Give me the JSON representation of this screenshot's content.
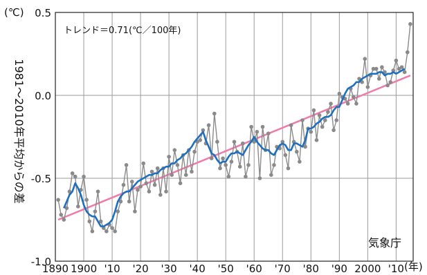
{
  "chart_data": {
    "type": "line",
    "y_unit": "(℃)",
    "x_unit": "(年)",
    "ylabel": "1981〜2010年平均からの差",
    "trend_label": "トレンド＝0.71(℃／100年)",
    "source": "気象庁",
    "ylim": [
      -1.0,
      0.5
    ],
    "xlim": [
      1890,
      2016
    ],
    "yticks": [
      0.5,
      0.0,
      -0.5,
      -1.0
    ],
    "ytick_labels": [
      "0.5",
      "0.0",
      "-0.5",
      "-1.0"
    ],
    "xticks": [
      1890,
      1900,
      1910,
      1920,
      1930,
      1940,
      1950,
      1960,
      1970,
      1980,
      1990,
      2000,
      2010
    ],
    "xtick_labels": [
      "1890",
      "1900",
      "'10",
      "'20",
      "'30",
      "'40",
      "'50",
      "'60",
      "'70",
      "'80",
      "'90",
      "2000",
      "'10"
    ],
    "grid": true,
    "colors": {
      "annual": "#8a8a8a",
      "running_mean": "#1f6fbf",
      "trend": "#f07aa8"
    },
    "series": [
      {
        "kind": "annual",
        "x": [
          1891,
          1892,
          1893,
          1894,
          1895,
          1896,
          1897,
          1898,
          1899,
          1900,
          1901,
          1902,
          1903,
          1904,
          1905,
          1906,
          1907,
          1908,
          1909,
          1910,
          1911,
          1912,
          1913,
          1914,
          1915,
          1916,
          1917,
          1918,
          1919,
          1920,
          1921,
          1922,
          1923,
          1924,
          1925,
          1926,
          1927,
          1928,
          1929,
          1930,
          1931,
          1932,
          1933,
          1934,
          1935,
          1936,
          1937,
          1938,
          1939,
          1940,
          1941,
          1942,
          1943,
          1944,
          1945,
          1946,
          1947,
          1948,
          1949,
          1950,
          1951,
          1952,
          1953,
          1954,
          1955,
          1956,
          1957,
          1958,
          1959,
          1960,
          1961,
          1962,
          1963,
          1964,
          1965,
          1966,
          1967,
          1968,
          1969,
          1970,
          1971,
          1972,
          1973,
          1974,
          1975,
          1976,
          1977,
          1978,
          1979,
          1980,
          1981,
          1982,
          1983,
          1984,
          1985,
          1986,
          1987,
          1988,
          1989,
          1990,
          1991,
          1992,
          1993,
          1994,
          1995,
          1996,
          1997,
          1998,
          1999,
          2000,
          2001,
          2002,
          2003,
          2004,
          2005,
          2006,
          2007,
          2008,
          2009,
          2010,
          2011,
          2012,
          2013,
          2014,
          2015
        ],
        "y": [
          -0.63,
          -0.72,
          -0.75,
          -0.68,
          -0.58,
          -0.47,
          -0.49,
          -0.67,
          -0.57,
          -0.49,
          -0.63,
          -0.76,
          -0.82,
          -0.7,
          -0.58,
          -0.76,
          -0.8,
          -0.82,
          -0.78,
          -0.8,
          -0.82,
          -0.7,
          -0.64,
          -0.54,
          -0.42,
          -0.64,
          -0.52,
          -0.7,
          -0.57,
          -0.55,
          -0.41,
          -0.53,
          -0.58,
          -0.46,
          -0.54,
          -0.44,
          -0.6,
          -0.44,
          -0.58,
          -0.37,
          -0.48,
          -0.33,
          -0.42,
          -0.53,
          -0.36,
          -0.48,
          -0.33,
          -0.46,
          -0.34,
          -0.28,
          -0.27,
          -0.21,
          -0.29,
          -0.18,
          -0.38,
          -0.11,
          -0.28,
          -0.44,
          -0.38,
          -0.42,
          -0.49,
          -0.4,
          -0.28,
          -0.34,
          -0.43,
          -0.29,
          -0.49,
          -0.42,
          -0.19,
          -0.28,
          -0.22,
          -0.5,
          -0.19,
          -0.33,
          -0.23,
          -0.48,
          -0.42,
          -0.31,
          -0.32,
          -0.28,
          -0.36,
          -0.44,
          -0.18,
          -0.28,
          -0.34,
          -0.4,
          -0.15,
          -0.31,
          -0.2,
          -0.22,
          -0.09,
          -0.27,
          -0.12,
          -0.19,
          -0.15,
          -0.1,
          -0.05,
          -0.21,
          -0.15,
          0.01,
          -0.01,
          -0.02,
          -0.05,
          0.04,
          -0.01,
          -0.05,
          0.1,
          0.08,
          0.22,
          0.05,
          0.12,
          0.16,
          0.16,
          0.1,
          0.17,
          0.14,
          0.06,
          0.08,
          0.15,
          0.21,
          0.16,
          0.17,
          0.14,
          0.26,
          0.43
        ]
      },
      {
        "kind": "running_mean",
        "x": [
          1893,
          1894,
          1895,
          1896,
          1897,
          1898,
          1899,
          1900,
          1901,
          1902,
          1903,
          1904,
          1905,
          1906,
          1907,
          1908,
          1909,
          1910,
          1911,
          1912,
          1913,
          1914,
          1915,
          1916,
          1917,
          1918,
          1919,
          1920,
          1921,
          1922,
          1923,
          1924,
          1925,
          1926,
          1927,
          1928,
          1929,
          1930,
          1931,
          1932,
          1933,
          1934,
          1935,
          1936,
          1937,
          1938,
          1939,
          1940,
          1941,
          1942,
          1943,
          1944,
          1945,
          1946,
          1947,
          1948,
          1949,
          1950,
          1951,
          1952,
          1953,
          1954,
          1955,
          1956,
          1957,
          1958,
          1959,
          1960,
          1961,
          1962,
          1963,
          1964,
          1965,
          1966,
          1967,
          1968,
          1969,
          1970,
          1971,
          1972,
          1973,
          1974,
          1975,
          1976,
          1977,
          1978,
          1979,
          1980,
          1981,
          1982,
          1983,
          1984,
          1985,
          1986,
          1987,
          1988,
          1989,
          1990,
          1991,
          1992,
          1993,
          1994,
          1995,
          1996,
          1997,
          1998,
          1999,
          2000,
          2001,
          2002,
          2003,
          2004,
          2005,
          2006,
          2007,
          2008,
          2009,
          2010,
          2011,
          2012,
          2013
        ],
        "y": [
          -0.68,
          -0.64,
          -0.6,
          -0.58,
          -0.53,
          -0.56,
          -0.6,
          -0.66,
          -0.7,
          -0.72,
          -0.73,
          -0.73,
          -0.76,
          -0.79,
          -0.79,
          -0.78,
          -0.77,
          -0.75,
          -0.7,
          -0.64,
          -0.61,
          -0.59,
          -0.58,
          -0.58,
          -0.56,
          -0.54,
          -0.52,
          -0.51,
          -0.5,
          -0.49,
          -0.48,
          -0.48,
          -0.47,
          -0.47,
          -0.45,
          -0.44,
          -0.43,
          -0.43,
          -0.41,
          -0.41,
          -0.39,
          -0.38,
          -0.36,
          -0.35,
          -0.33,
          -0.31,
          -0.28,
          -0.26,
          -0.24,
          -0.22,
          -0.27,
          -0.31,
          -0.35,
          -0.36,
          -0.39,
          -0.41,
          -0.4,
          -0.4,
          -0.37,
          -0.35,
          -0.35,
          -0.34,
          -0.35,
          -0.36,
          -0.33,
          -0.3,
          -0.28,
          -0.25,
          -0.28,
          -0.3,
          -0.32,
          -0.33,
          -0.33,
          -0.35,
          -0.36,
          -0.33,
          -0.3,
          -0.29,
          -0.3,
          -0.33,
          -0.33,
          -0.29,
          -0.29,
          -0.3,
          -0.31,
          -0.27,
          -0.2,
          -0.2,
          -0.19,
          -0.17,
          -0.16,
          -0.14,
          -0.13,
          -0.13,
          -0.12,
          -0.09,
          -0.07,
          -0.07,
          -0.03,
          0.01,
          0.04,
          0.05,
          0.06,
          0.08,
          0.08,
          0.1,
          0.11,
          0.12,
          0.13,
          0.13,
          0.13,
          0.14,
          0.14,
          0.12,
          0.13,
          0.13,
          0.14,
          0.13,
          0.14,
          0.15,
          0.16
        ]
      },
      {
        "kind": "trend",
        "x": [
          1891,
          2015
        ],
        "y": [
          -0.75,
          0.12
        ]
      }
    ]
  }
}
